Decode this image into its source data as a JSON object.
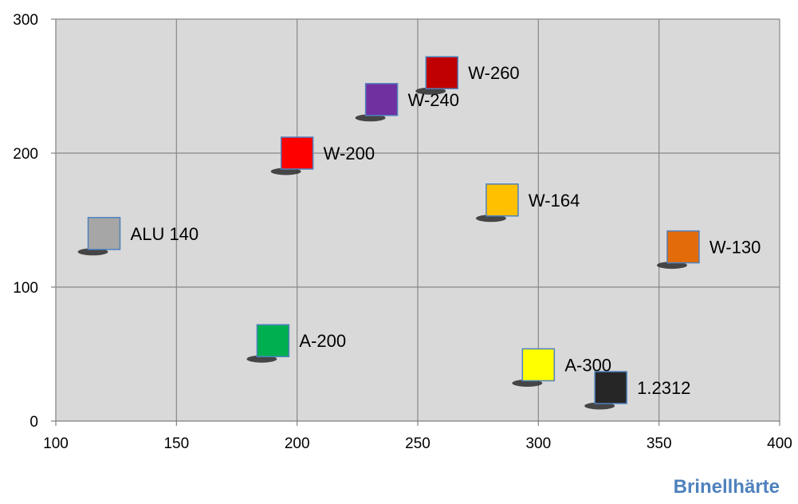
{
  "chart_data": {
    "type": "scatter",
    "title": "",
    "xlabel": "Brinellhärte",
    "ylabel": "",
    "xlim": [
      100,
      400
    ],
    "ylim": [
      0,
      300
    ],
    "x_ticks": [
      100,
      150,
      200,
      250,
      300,
      350,
      400
    ],
    "y_ticks": [
      0,
      100,
      200,
      300
    ],
    "grid": true,
    "legend": "none",
    "points": [
      {
        "label": "ALU 140",
        "x": 120,
        "y": 140,
        "color": "#a6a6a6"
      },
      {
        "label": "A-200",
        "x": 190,
        "y": 60,
        "color": "#00b050"
      },
      {
        "label": "W-200",
        "x": 200,
        "y": 200,
        "color": "#ff0000"
      },
      {
        "label": "W-240",
        "x": 235,
        "y": 240,
        "color": "#7030a0"
      },
      {
        "label": "W-260",
        "x": 260,
        "y": 260,
        "color": "#c00000"
      },
      {
        "label": "W-164",
        "x": 285,
        "y": 165,
        "color": "#ffc000"
      },
      {
        "label": "A-300",
        "x": 300,
        "y": 42,
        "color": "#ffff00"
      },
      {
        "label": "1.2312",
        "x": 330,
        "y": 25,
        "color": "#262626"
      },
      {
        "label": "W-130",
        "x": 360,
        "y": 130,
        "color": "#e36c0a"
      }
    ]
  },
  "style": {
    "plot_background": "#d9d9d9",
    "gridline": "#888888",
    "marker_border": "#4f81bd",
    "xlabel_color": "#4f81bd"
  }
}
